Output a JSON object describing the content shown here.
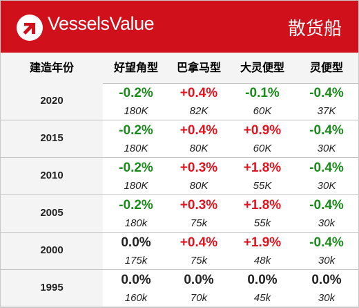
{
  "header": {
    "brand": "VesselsValue",
    "category": "散货船",
    "logo_icon": "vesselsvalue-logo-icon",
    "background_color": "#d0101a"
  },
  "columns": [
    "建造年份",
    "好望角型",
    "巴拿马型",
    "大灵便型",
    "灵便型"
  ],
  "colors": {
    "negative": "#1a8a1a",
    "positive": "#e0141e",
    "neutral": "#222222"
  },
  "rows": [
    {
      "year": "2020",
      "cells": [
        {
          "change": "-0.2%",
          "value": "180K",
          "trend": "neg"
        },
        {
          "change": "+0.4%",
          "value": "82K",
          "trend": "pos"
        },
        {
          "change": "-0.1%",
          "value": "60K",
          "trend": "neg"
        },
        {
          "change": "-0.4%",
          "value": "37K",
          "trend": "neg"
        }
      ]
    },
    {
      "year": "2015",
      "cells": [
        {
          "change": "-0.2%",
          "value": "180K",
          "trend": "neg"
        },
        {
          "change": "+0.4%",
          "value": "80K",
          "trend": "pos"
        },
        {
          "change": "+0.9%",
          "value": "60K",
          "trend": "pos"
        },
        {
          "change": "-0.4%",
          "value": "30K",
          "trend": "neg"
        }
      ]
    },
    {
      "year": "2010",
      "cells": [
        {
          "change": "-0.2%",
          "value": "180K",
          "trend": "neg"
        },
        {
          "change": "+0.3%",
          "value": "80K",
          "trend": "pos"
        },
        {
          "change": "+1.8%",
          "value": "55K",
          "trend": "pos"
        },
        {
          "change": "-0.4%",
          "value": "30K",
          "trend": "neg"
        }
      ]
    },
    {
      "year": "2005",
      "cells": [
        {
          "change": "-0.2%",
          "value": "180k",
          "trend": "neg"
        },
        {
          "change": "+0.3%",
          "value": "75k",
          "trend": "pos"
        },
        {
          "change": "+1.8%",
          "value": "55k",
          "trend": "pos"
        },
        {
          "change": "-0.4%",
          "value": "30k",
          "trend": "neg"
        }
      ]
    },
    {
      "year": "2000",
      "cells": [
        {
          "change": "0.0%",
          "value": "175k",
          "trend": "zero"
        },
        {
          "change": "+0.4%",
          "value": "75k",
          "trend": "pos"
        },
        {
          "change": "+1.9%",
          "value": "48k",
          "trend": "pos"
        },
        {
          "change": "-0.4%",
          "value": "30k",
          "trend": "neg"
        }
      ]
    },
    {
      "year": "1995",
      "cells": [
        {
          "change": "0.0%",
          "value": "160k",
          "trend": "zero"
        },
        {
          "change": "0.0%",
          "value": "70k",
          "trend": "zero"
        },
        {
          "change": "0.0%",
          "value": "45k",
          "trend": "zero"
        },
        {
          "change": "0.0%",
          "value": "30k",
          "trend": "zero"
        }
      ]
    }
  ]
}
